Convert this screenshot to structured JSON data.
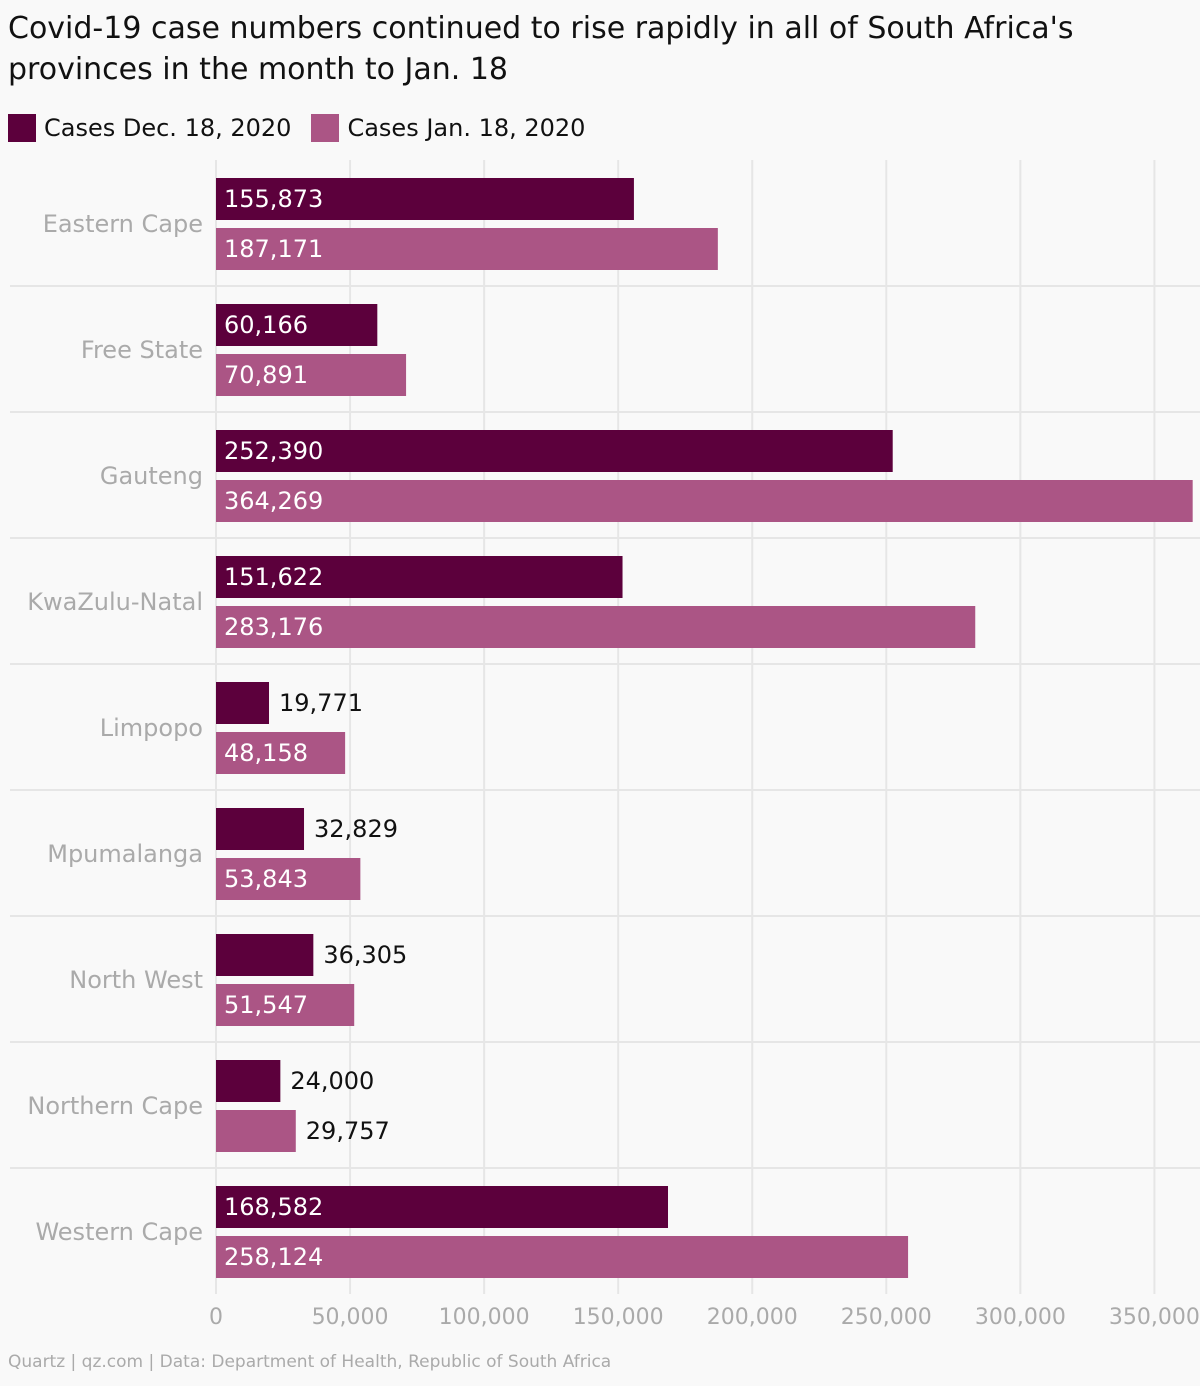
{
  "chart_data": {
    "type": "hbar",
    "title": "Covid-19 case numbers continued to rise rapidly in all of South Africa's provinces in the month to Jan. 18",
    "categories": [
      "Eastern Cape",
      "Free State",
      "Gauteng",
      "KwaZulu-Natal",
      "Limpopo",
      "Mpumalanga",
      "North West",
      "Northern Cape",
      "Western Cape"
    ],
    "series": [
      {
        "name": "Cases Dec. 18, 2020",
        "color": "#5c003c",
        "values": [
          155873,
          60166,
          252390,
          151622,
          19771,
          32829,
          36305,
          24000,
          168582
        ],
        "value_labels": [
          "155,873",
          "60,166",
          "252,390",
          "151,622",
          "19,771",
          "32,829",
          "36,305",
          "24,000",
          "168,582"
        ]
      },
      {
        "name": "Cases Jan. 18, 2020",
        "color": "#ab5585",
        "values": [
          187171,
          70891,
          364269,
          283176,
          48158,
          53843,
          51547,
          29757,
          258124
        ],
        "value_labels": [
          "187,171",
          "70,891",
          "364,269",
          "283,176",
          "48,158",
          "53,843",
          "51,547",
          "29,757",
          "258,124"
        ]
      }
    ],
    "xlim": [
      0,
      367000
    ],
    "xticks": [
      0,
      {
        "value": 50000,
        "label": "50,000"
      },
      {
        "value": 100000,
        "label": "100,000"
      },
      {
        "value": 150000,
        "label": "150,000"
      },
      {
        "value": 200000,
        "label": "200,000"
      },
      {
        "value": 250000,
        "label": "250,000"
      },
      {
        "value": 300000,
        "label": "300,000"
      },
      {
        "value": 350000,
        "label": "350,000"
      }
    ],
    "grid": true,
    "legend": "top",
    "source": "Quartz | qz.com | Data: Department of Health, Republic of South Africa"
  }
}
